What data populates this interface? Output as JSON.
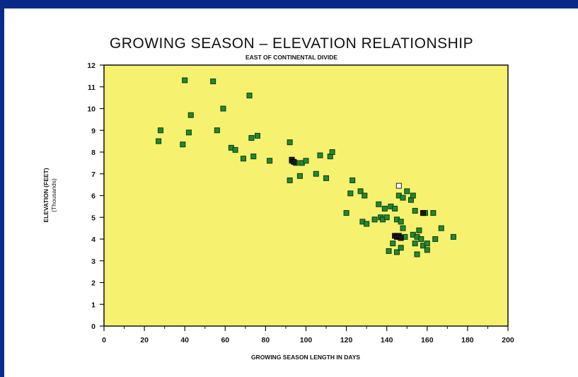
{
  "chart_data": {
    "type": "scatter",
    "title": "GROWING SEASON – ELEVATION RELATIONSHIP",
    "subtitle": "EAST OF CONTINENTAL DIVIDE",
    "xlabel": "GROWING SEASON LENGTH IN DAYS",
    "ylabel": "ELEVATION (FEET)",
    "ylabel2": "(Thousands)",
    "xlim": [
      0,
      200
    ],
    "ylim": [
      0,
      12
    ],
    "x_ticks": [
      0,
      20,
      40,
      60,
      80,
      100,
      120,
      140,
      160,
      180,
      200
    ],
    "y_ticks": [
      0,
      1,
      2,
      3,
      4,
      5,
      6,
      7,
      8,
      9,
      10,
      11,
      12
    ],
    "grid": false,
    "background": "#f6f16e",
    "marker_color": "#1f8a2e",
    "series": [
      {
        "points": [
          [
            27,
            8.5
          ],
          [
            28,
            9.0
          ],
          [
            39,
            8.35
          ],
          [
            40,
            11.3
          ],
          [
            42,
            8.9
          ],
          [
            43,
            9.7
          ],
          [
            54,
            11.25
          ],
          [
            56,
            9.0
          ],
          [
            59,
            10.0
          ],
          [
            63,
            8.2
          ],
          [
            65,
            8.1
          ],
          [
            69,
            7.7
          ],
          [
            72,
            10.6
          ],
          [
            73,
            8.65
          ],
          [
            74,
            7.8
          ],
          [
            76,
            8.75
          ],
          [
            82,
            7.6
          ],
          [
            92,
            8.45
          ],
          [
            92,
            6.7
          ],
          [
            93,
            7.6
          ],
          [
            95,
            7.5
          ],
          [
            97,
            6.9
          ],
          [
            98,
            7.5
          ],
          [
            100,
            7.6
          ],
          [
            105,
            7.0
          ],
          [
            107,
            7.85
          ],
          [
            110,
            6.8
          ],
          [
            112,
            7.8
          ],
          [
            113,
            8.0
          ],
          [
            120,
            5.2
          ],
          [
            122,
            6.1
          ],
          [
            123,
            6.7
          ],
          [
            127,
            6.2
          ],
          [
            128,
            4.8
          ],
          [
            129,
            6.0
          ],
          [
            130,
            4.7
          ],
          [
            134,
            4.9
          ],
          [
            136,
            5.6
          ],
          [
            137,
            5.0
          ],
          [
            138,
            4.9
          ],
          [
            139,
            5.4
          ],
          [
            140,
            5.0
          ],
          [
            141,
            3.45
          ],
          [
            142,
            5.5
          ],
          [
            143,
            3.8
          ],
          [
            144,
            5.4
          ],
          [
            145,
            4.9
          ],
          [
            145,
            3.4
          ],
          [
            146,
            6.0
          ],
          [
            146,
            4.1
          ],
          [
            147,
            4.8
          ],
          [
            147,
            3.6
          ],
          [
            148,
            4.5
          ],
          [
            148,
            5.9
          ],
          [
            149,
            4.1
          ],
          [
            150,
            6.2
          ],
          [
            152,
            5.8
          ],
          [
            153,
            4.2
          ],
          [
            153,
            6.0
          ],
          [
            154,
            5.3
          ],
          [
            154,
            3.8
          ],
          [
            155,
            4.1
          ],
          [
            155,
            3.3
          ],
          [
            156,
            4.4
          ],
          [
            157,
            4.0
          ],
          [
            158,
            5.2
          ],
          [
            158,
            3.7
          ],
          [
            159,
            5.2
          ],
          [
            160,
            3.8
          ],
          [
            160,
            3.5
          ],
          [
            163,
            5.2
          ],
          [
            164,
            4.0
          ],
          [
            167,
            4.5
          ],
          [
            173,
            4.1
          ]
        ]
      },
      {
        "points": [
          [
            93,
            7.65
          ],
          [
            94,
            7.55
          ],
          [
            144,
            4.15
          ],
          [
            145,
            4.1
          ],
          [
            146,
            4.15
          ],
          [
            147,
            4.05
          ],
          [
            158,
            5.2
          ]
        ]
      },
      {
        "points": [
          [
            146,
            6.45
          ]
        ]
      }
    ]
  }
}
